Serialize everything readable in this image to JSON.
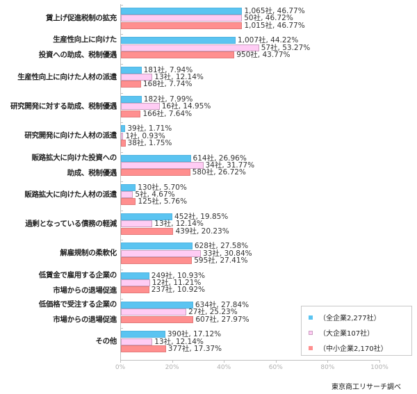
{
  "chart_data": {
    "type": "bar",
    "orientation": "horizontal",
    "title": "",
    "xlabel": "",
    "ylabel": "",
    "xlim": [
      0,
      100
    ],
    "x_ticks": [
      "0%",
      "20%",
      "40%",
      "60%",
      "80%",
      "100%"
    ],
    "grid": false,
    "legend_position": "lower right (inside plot)",
    "categories": [
      [
        "賃上げ促進税制の拡充"
      ],
      [
        "生産性向上に向けた",
        "投資への助成、税制優遇"
      ],
      [
        "生産性向上に向けた人材の派遣"
      ],
      [
        "研究開発に対する助成、税制優遇"
      ],
      [
        "研究開発に向けた人材の派遣"
      ],
      [
        "販路拡大に向けた投資への",
        "助成、税制優遇"
      ],
      [
        "販路拡大に向けた人材の派遣"
      ],
      [
        "過剰となっている債務の軽減"
      ],
      [
        "解雇規制の柔軟化"
      ],
      [
        "低賃金で雇用する企業の",
        "市場からの退場促進"
      ],
      [
        "低価格で受注する企業の",
        "市場からの退場促進"
      ],
      [
        "その他"
      ]
    ],
    "series": [
      {
        "name": "（全企業2,277社）",
        "color": "#5bc4f1",
        "values": [
          46.77,
          44.22,
          7.94,
          7.99,
          1.71,
          26.96,
          5.7,
          19.85,
          27.58,
          10.93,
          27.84,
          17.12
        ],
        "counts": [
          "1,065社",
          "1,007社",
          "181社",
          "182社",
          "39社",
          "614社",
          "130社",
          "452社",
          "628社",
          "249社",
          "634社",
          "390社"
        ],
        "labels": [
          "1,065社, 46.77%",
          "1,007社, 44.22%",
          "181社, 7.94%",
          "182社, 7.99%",
          "39社, 1.71%",
          "614社, 26.96%",
          "130社, 5.70%",
          "452社, 19.85%",
          "628社, 27.58%",
          "249社, 10.93%",
          "634社, 27.84%",
          "390社, 17.12%"
        ]
      },
      {
        "name": "（大企業107社）",
        "color": "#ffccf4",
        "values": [
          46.72,
          53.27,
          12.14,
          14.95,
          0.93,
          31.77,
          4.67,
          12.14,
          30.84,
          11.21,
          25.23,
          12.14
        ],
        "counts": [
          "50社",
          "57社",
          "13社",
          "16社",
          "1社",
          "34社",
          "5社",
          "13社",
          "33社",
          "12社",
          "27社",
          "13社"
        ],
        "labels": [
          "50社, 46.72%",
          "57社, 53.27%",
          "13社, 12.14%",
          "16社, 14.95%",
          "1社, 0.93%",
          "34社, 31.77%",
          "5社, 4.67%",
          "13社, 12.14%",
          "33社, 30.84%",
          "12社, 11.21%",
          "27社, 25.23%",
          "13社, 12.14%"
        ]
      },
      {
        "name": "（中小企業2,170社）",
        "color": "#ff8f8f",
        "values": [
          46.77,
          43.77,
          7.74,
          7.64,
          1.75,
          26.72,
          5.76,
          20.23,
          27.41,
          10.92,
          27.97,
          17.37
        ],
        "counts": [
          "1,015社",
          "950社",
          "168社",
          "166社",
          "38社",
          "580社",
          "125社",
          "439社",
          "595社",
          "237社",
          "607社",
          "377社"
        ],
        "labels": [
          "1,015社, 46.77%",
          "950社, 43.77%",
          "168社, 7.74%",
          "166社, 7.64%",
          "38社, 1.75%",
          "580社, 26.72%",
          "125社, 5.76%",
          "439社, 20.23%",
          "595社, 27.41%",
          "237社, 10.92%",
          "607社, 27.97%",
          "377社, 17.37%"
        ]
      }
    ],
    "annotations": [
      "東京商工リサーチ調べ"
    ]
  },
  "legend": {
    "items": [
      "（全企業2,277社）",
      "（大企業107社）",
      "（中小企業2,170社）"
    ]
  },
  "source": "東京商工リサーチ調べ"
}
